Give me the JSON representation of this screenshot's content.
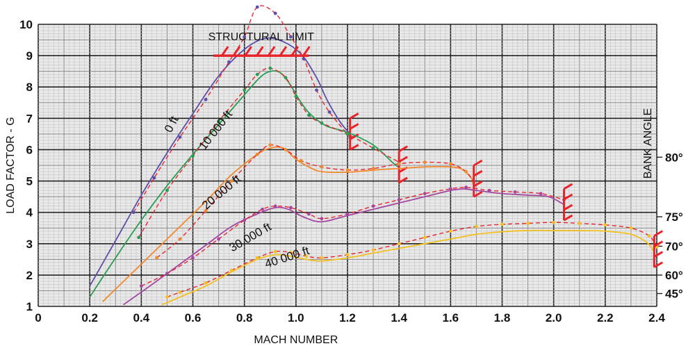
{
  "chart_data": {
    "type": "line",
    "xlabel": "MACH NUMBER",
    "ylabel": "LOAD FACTOR - G",
    "right_axis_label": "BANK ANGLE",
    "xlim": [
      0,
      2.4
    ],
    "ylim": [
      1,
      10
    ],
    "x_ticks": [
      "0",
      "0.2",
      "0.4",
      "0.6",
      "0.8",
      "1.0",
      "1.2",
      "1.4",
      "1.6",
      "1.8",
      "2.0",
      "2.2",
      "2.4"
    ],
    "y_ticks": [
      "1",
      "2",
      "3",
      "4",
      "5",
      "6",
      "7",
      "8",
      "9",
      "10"
    ],
    "right_ticks": [
      {
        "label": "80°",
        "at_load_factor": 5.76
      },
      {
        "label": "75°",
        "at_load_factor": 3.86
      },
      {
        "label": "70°",
        "at_load_factor": 2.92
      },
      {
        "label": "60°",
        "at_load_factor": 2.0
      },
      {
        "label": "45°",
        "at_load_factor": 1.41
      }
    ],
    "grid": true,
    "structural_limit": {
      "label": "STRUCTURAL LIMIT",
      "load_factor": 9.0,
      "x_range": [
        0.68,
        1.05
      ]
    },
    "series": [
      {
        "name": "0 ft",
        "color": "#5b4fa8",
        "label_at": [
          0.53,
          6.75
        ],
        "label_angle": -62,
        "solid": [
          [
            0.2,
            1.65
          ],
          [
            0.3,
            3.1
          ],
          [
            0.4,
            4.55
          ],
          [
            0.5,
            5.9
          ],
          [
            0.6,
            7.15
          ],
          [
            0.7,
            8.35
          ],
          [
            0.8,
            9.2
          ],
          [
            0.88,
            9.55
          ],
          [
            0.95,
            9.45
          ],
          [
            1.02,
            9.05
          ],
          [
            1.08,
            8.3
          ],
          [
            1.12,
            7.6
          ],
          [
            1.17,
            6.9
          ],
          [
            1.21,
            6.5
          ]
        ],
        "dashed": [
          [
            0.37,
            4.0
          ],
          [
            0.45,
            5.1
          ],
          [
            0.55,
            6.4
          ],
          [
            0.65,
            7.6
          ],
          [
            0.74,
            8.8
          ],
          [
            0.8,
            9.6
          ],
          [
            0.85,
            10.55
          ],
          [
            0.92,
            10.35
          ],
          [
            0.98,
            9.6
          ],
          [
            1.03,
            8.9
          ],
          [
            1.08,
            7.9
          ],
          [
            1.13,
            7.2
          ],
          [
            1.21,
            6.4
          ]
        ],
        "end_mach": 1.21
      },
      {
        "name": "10 000 ft",
        "color": "#2a9b55",
        "label_at": [
          0.7,
          6.55
        ],
        "label_angle": -52,
        "solid": [
          [
            0.2,
            1.3
          ],
          [
            0.3,
            2.55
          ],
          [
            0.4,
            3.75
          ],
          [
            0.5,
            4.85
          ],
          [
            0.6,
            5.85
          ],
          [
            0.7,
            6.8
          ],
          [
            0.8,
            7.75
          ],
          [
            0.86,
            8.3
          ],
          [
            0.9,
            8.5
          ],
          [
            0.94,
            8.45
          ],
          [
            0.98,
            8.05
          ],
          [
            1.02,
            7.5
          ],
          [
            1.06,
            7.1
          ],
          [
            1.12,
            6.75
          ],
          [
            1.2,
            6.55
          ],
          [
            1.3,
            6.15
          ],
          [
            1.38,
            5.55
          ],
          [
            1.4,
            5.45
          ]
        ],
        "dashed": [
          [
            0.39,
            3.2
          ],
          [
            0.5,
            4.7
          ],
          [
            0.6,
            5.8
          ],
          [
            0.7,
            6.9
          ],
          [
            0.8,
            7.9
          ],
          [
            0.85,
            8.4
          ],
          [
            0.9,
            8.6
          ],
          [
            0.96,
            8.3
          ],
          [
            1.0,
            7.7
          ],
          [
            1.05,
            7.1
          ],
          [
            1.1,
            6.85
          ],
          [
            1.2,
            6.5
          ],
          [
            1.3,
            6.05
          ],
          [
            1.4,
            5.6
          ]
        ],
        "end_mach": 1.4
      },
      {
        "name": "20 000 ft",
        "color": "#f0892c",
        "label_at": [
          0.72,
          4.55
        ],
        "label_angle": -40,
        "solid": [
          [
            0.25,
            1.15
          ],
          [
            0.35,
            1.95
          ],
          [
            0.45,
            2.75
          ],
          [
            0.55,
            3.55
          ],
          [
            0.65,
            4.35
          ],
          [
            0.75,
            5.2
          ],
          [
            0.85,
            5.85
          ],
          [
            0.9,
            6.05
          ],
          [
            0.95,
            6.05
          ],
          [
            1.0,
            5.7
          ],
          [
            1.05,
            5.45
          ],
          [
            1.1,
            5.3
          ],
          [
            1.2,
            5.28
          ],
          [
            1.3,
            5.35
          ],
          [
            1.4,
            5.4
          ],
          [
            1.5,
            5.45
          ],
          [
            1.6,
            5.45
          ],
          [
            1.65,
            5.35
          ],
          [
            1.69,
            5.0
          ]
        ],
        "dashed": [
          [
            0.46,
            2.55
          ],
          [
            0.55,
            3.15
          ],
          [
            0.65,
            4.05
          ],
          [
            0.75,
            5.0
          ],
          [
            0.85,
            5.85
          ],
          [
            0.9,
            6.15
          ],
          [
            0.96,
            6.0
          ],
          [
            1.02,
            5.65
          ],
          [
            1.1,
            5.45
          ],
          [
            1.2,
            5.35
          ],
          [
            1.3,
            5.4
          ],
          [
            1.4,
            5.55
          ],
          [
            1.5,
            5.6
          ],
          [
            1.6,
            5.55
          ],
          [
            1.66,
            5.3
          ],
          [
            1.69,
            4.95
          ]
        ],
        "end_mach": 1.69
      },
      {
        "name": "30 000 ft",
        "color": "#a447a0",
        "label_at": [
          0.83,
          3.1
        ],
        "label_angle": -30,
        "solid": [
          [
            0.33,
            1.05
          ],
          [
            0.45,
            1.75
          ],
          [
            0.55,
            2.35
          ],
          [
            0.65,
            2.95
          ],
          [
            0.75,
            3.55
          ],
          [
            0.85,
            3.95
          ],
          [
            0.92,
            4.15
          ],
          [
            0.97,
            4.1
          ],
          [
            1.03,
            3.85
          ],
          [
            1.1,
            3.7
          ],
          [
            1.2,
            3.9
          ],
          [
            1.3,
            4.1
          ],
          [
            1.4,
            4.3
          ],
          [
            1.5,
            4.5
          ],
          [
            1.6,
            4.7
          ],
          [
            1.65,
            4.75
          ],
          [
            1.7,
            4.7
          ],
          [
            1.8,
            4.6
          ],
          [
            1.9,
            4.55
          ],
          [
            1.98,
            4.5
          ],
          [
            2.04,
            4.25
          ]
        ],
        "dashed": [
          [
            0.4,
            1.65
          ],
          [
            0.5,
            2.05
          ],
          [
            0.6,
            2.55
          ],
          [
            0.7,
            3.15
          ],
          [
            0.8,
            3.75
          ],
          [
            0.87,
            4.1
          ],
          [
            0.92,
            4.2
          ],
          [
            0.98,
            4.15
          ],
          [
            1.05,
            3.95
          ],
          [
            1.1,
            3.8
          ],
          [
            1.2,
            3.95
          ],
          [
            1.3,
            4.2
          ],
          [
            1.4,
            4.4
          ],
          [
            1.5,
            4.6
          ],
          [
            1.6,
            4.75
          ],
          [
            1.66,
            4.8
          ],
          [
            1.75,
            4.7
          ],
          [
            1.85,
            4.65
          ],
          [
            1.95,
            4.6
          ],
          [
            2.04,
            4.4
          ]
        ],
        "end_mach": 2.04
      },
      {
        "name": "40 000 ft",
        "color": "#f3c020",
        "label_at": [
          0.97,
          2.45
        ],
        "label_angle": -18,
        "solid": [
          [
            0.48,
            1.05
          ],
          [
            0.55,
            1.3
          ],
          [
            0.65,
            1.65
          ],
          [
            0.75,
            2.1
          ],
          [
            0.85,
            2.5
          ],
          [
            0.92,
            2.65
          ],
          [
            0.98,
            2.6
          ],
          [
            1.04,
            2.5
          ],
          [
            1.1,
            2.45
          ],
          [
            1.2,
            2.55
          ],
          [
            1.3,
            2.7
          ],
          [
            1.4,
            2.85
          ],
          [
            1.5,
            3.0
          ],
          [
            1.6,
            3.15
          ],
          [
            1.7,
            3.3
          ],
          [
            1.8,
            3.38
          ],
          [
            1.9,
            3.42
          ],
          [
            2.0,
            3.42
          ],
          [
            2.1,
            3.42
          ],
          [
            2.2,
            3.4
          ],
          [
            2.3,
            3.3
          ],
          [
            2.36,
            3.05
          ],
          [
            2.39,
            2.75
          ]
        ],
        "dashed": [
          [
            0.5,
            1.3
          ],
          [
            0.55,
            1.45
          ],
          [
            0.65,
            1.75
          ],
          [
            0.75,
            2.15
          ],
          [
            0.85,
            2.55
          ],
          [
            0.92,
            2.75
          ],
          [
            0.98,
            2.72
          ],
          [
            1.04,
            2.6
          ],
          [
            1.1,
            2.55
          ],
          [
            1.2,
            2.65
          ],
          [
            1.3,
            2.8
          ],
          [
            1.4,
            3.0
          ],
          [
            1.5,
            3.2
          ],
          [
            1.6,
            3.4
          ],
          [
            1.7,
            3.55
          ],
          [
            1.8,
            3.62
          ],
          [
            1.9,
            3.65
          ],
          [
            2.0,
            3.68
          ],
          [
            2.1,
            3.65
          ],
          [
            2.2,
            3.6
          ],
          [
            2.3,
            3.5
          ],
          [
            2.37,
            3.25
          ],
          [
            2.4,
            2.9
          ]
        ],
        "end_mach": 2.39
      }
    ]
  }
}
